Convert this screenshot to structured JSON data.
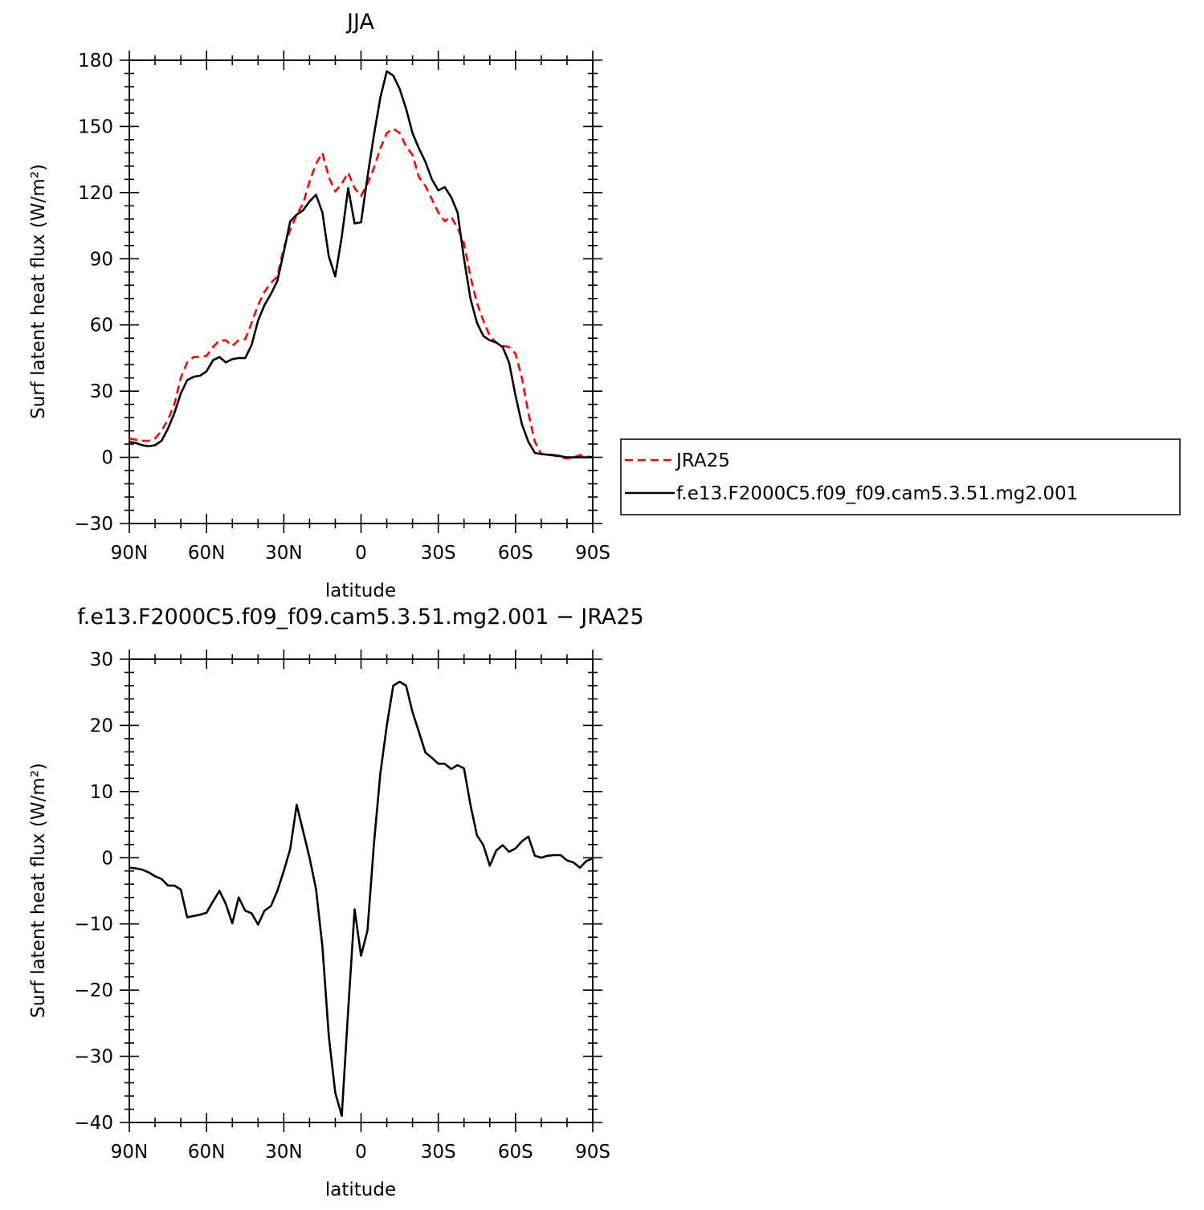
{
  "chart_data": [
    {
      "type": "line",
      "title": "JJA",
      "xlabel": "latitude",
      "ylabel": "Surf latent heat flux (W/m²)",
      "xlim": [
        -90,
        90
      ],
      "ylim": [
        -30,
        180
      ],
      "x_ticks": [
        -90,
        -60,
        -30,
        0,
        30,
        60,
        90
      ],
      "x_tick_labels": [
        "90N",
        "60N",
        "30N",
        "0",
        "30S",
        "60S",
        "90S"
      ],
      "y_ticks": [
        -30,
        0,
        30,
        60,
        90,
        120,
        150,
        180
      ],
      "y_tick_labels": [
        "−30",
        "0",
        "30",
        "60",
        "90",
        "120",
        "150",
        "180"
      ],
      "legend_position": "right",
      "series": [
        {
          "name": "JRA25",
          "color": "#ff0000",
          "style": "dashed",
          "x": [
            -90,
            -87.5,
            -85,
            -82.5,
            -80,
            -77.5,
            -75,
            -72.5,
            -70,
            -67.5,
            -65,
            -62.5,
            -60,
            -57.5,
            -55,
            -52.5,
            -50,
            -47.5,
            -45,
            -42.5,
            -40,
            -37.5,
            -35,
            -32.5,
            -30,
            -27.5,
            -25,
            -22.5,
            -20,
            -17.5,
            -15,
            -12.5,
            -10,
            -7.5,
            -5,
            -2.5,
            0,
            2.5,
            5,
            7.5,
            10,
            12.5,
            15,
            17.5,
            20,
            22.5,
            25,
            27.5,
            30,
            32.5,
            35,
            37.5,
            40,
            42.5,
            45,
            47.5,
            50,
            52.5,
            55,
            57.5,
            60,
            62.5,
            65,
            67.5,
            70,
            72.5,
            75,
            77.5,
            80,
            82.5,
            85,
            87.5,
            90
          ],
          "y": [
            8.5,
            8,
            7.5,
            7.5,
            8.5,
            12,
            17,
            24,
            36,
            43,
            45.5,
            45.5,
            46,
            50,
            53,
            53,
            50.5,
            53,
            53.5,
            61,
            69,
            75,
            79,
            82,
            95,
            103,
            110,
            115,
            125,
            133,
            138,
            127,
            120.5,
            124,
            129,
            122,
            118.5,
            124,
            131,
            140,
            147,
            149,
            147,
            141,
            137,
            127,
            123,
            117,
            111,
            107,
            109,
            104,
            97,
            82,
            70,
            62,
            55,
            52,
            50.5,
            50,
            47,
            36,
            20,
            7,
            1.5,
            1.2,
            0.8,
            0,
            -0.5,
            0,
            1,
            0.5,
            0
          ]
        },
        {
          "name": "f.e13.F2000C5.f09_f09.cam5.3.51.mg2.001",
          "color": "#000000",
          "style": "solid",
          "x": [
            -90,
            -87.5,
            -85,
            -82.5,
            -80,
            -77.5,
            -75,
            -72.5,
            -70,
            -67.5,
            -65,
            -62.5,
            -60,
            -57.5,
            -55,
            -52.5,
            -50,
            -47.5,
            -45,
            -42.5,
            -40,
            -37.5,
            -35,
            -32.5,
            -30,
            -27.5,
            -25,
            -22.5,
            -20,
            -17.5,
            -15,
            -12.5,
            -10,
            -7.5,
            -5,
            -2.5,
            0,
            2.5,
            5,
            7.5,
            10,
            12.5,
            15,
            17.5,
            20,
            22.5,
            25,
            27.5,
            30,
            32.5,
            35,
            37.5,
            40,
            42.5,
            45,
            47.5,
            50,
            52.5,
            55,
            57.5,
            60,
            62.5,
            65,
            67.5,
            70,
            72.5,
            75,
            77.5,
            80,
            82.5,
            85,
            87.5,
            90
          ],
          "y": [
            7,
            6.5,
            5.5,
            5,
            5.5,
            7.5,
            13,
            20,
            29,
            35,
            36.5,
            37,
            39,
            44,
            45.5,
            43,
            44.5,
            45,
            45,
            51,
            62,
            69,
            74,
            80,
            93,
            107,
            110,
            112,
            116,
            119,
            111,
            91,
            82,
            100,
            122,
            106,
            106.5,
            127,
            146,
            163,
            175,
            173,
            167,
            158,
            147,
            140,
            134,
            126,
            121,
            122.5,
            118,
            111,
            90,
            72,
            61,
            55,
            53,
            52,
            50,
            43,
            28,
            15,
            7,
            2,
            1.5,
            1.2,
            1,
            0.5,
            0,
            0,
            0,
            0,
            0
          ]
        }
      ]
    },
    {
      "type": "line",
      "title": "f.e13.F2000C5.f09_f09.cam5.3.51.mg2.001  − JRA25",
      "xlabel": "latitude",
      "ylabel": "Surf latent heat flux (W/m²)",
      "xlim": [
        -90,
        90
      ],
      "ylim": [
        -40,
        30
      ],
      "x_ticks": [
        -90,
        -60,
        -30,
        0,
        30,
        60,
        90
      ],
      "x_tick_labels": [
        "90N",
        "60N",
        "30N",
        "0",
        "30S",
        "60S",
        "90S"
      ],
      "y_ticks": [
        -40,
        -30,
        -20,
        -10,
        0,
        10,
        20,
        30
      ],
      "y_tick_labels": [
        "−40",
        "−30",
        "−20",
        "−10",
        "0",
        "10",
        "20",
        "30"
      ],
      "series": [
        {
          "color": "#000000",
          "style": "solid",
          "x": [
            -90,
            -87.5,
            -85,
            -82.5,
            -80,
            -77.5,
            -75,
            -72.5,
            -70,
            -67.5,
            -65,
            -62.5,
            -60,
            -57.5,
            -55,
            -52.5,
            -50,
            -47.5,
            -45,
            -42.5,
            -40,
            -37.5,
            -35,
            -32.5,
            -30,
            -27.5,
            -25,
            -22.5,
            -20,
            -17.5,
            -15,
            -12.5,
            -10,
            -7.5,
            -5,
            -2.5,
            0,
            2.5,
            5,
            7.5,
            10,
            12.5,
            15,
            17.5,
            20,
            22.5,
            25,
            27.5,
            30,
            32.5,
            35,
            37.5,
            40,
            42.5,
            45,
            47.5,
            50,
            52.5,
            55,
            57.5,
            60,
            62.5,
            65,
            67.5,
            70,
            72.5,
            75,
            77.5,
            80,
            82.5,
            85,
            87.5,
            90
          ],
          "y": [
            -1.5,
            -1.6,
            -1.8,
            -2.2,
            -2.8,
            -3.2,
            -4.2,
            -4.2,
            -4.8,
            -9,
            -8.8,
            -8.6,
            -8.3,
            -6.6,
            -5,
            -7,
            -9.9,
            -6,
            -8,
            -8.4,
            -10.1,
            -8,
            -7.3,
            -5,
            -2,
            1.3,
            8,
            4,
            0,
            -4.7,
            -13.4,
            -27,
            -35.5,
            -39,
            -23,
            -7.8,
            -14.8,
            -11,
            2,
            12.7,
            20,
            26,
            26.6,
            26,
            22,
            19,
            15.9,
            15.1,
            14.2,
            14.2,
            13.4,
            14,
            13.5,
            8,
            3.4,
            1.9,
            -1.2,
            1.1,
            1.9,
            0.9,
            1.4,
            2.5,
            3.2,
            0.3,
            0,
            0.3,
            0.4,
            0.4,
            -0.4,
            -0.7,
            -1.5,
            -0.5,
            -0.1
          ]
        }
      ]
    }
  ]
}
